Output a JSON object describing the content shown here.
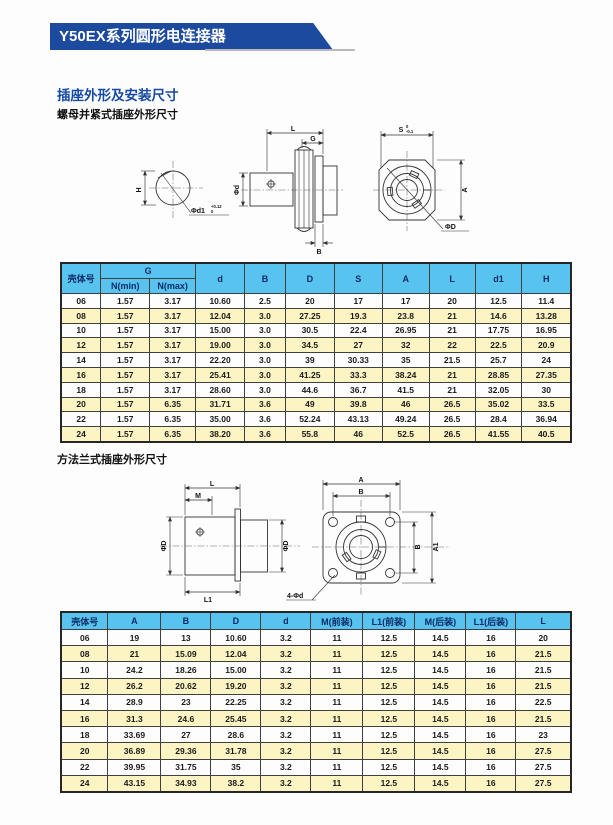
{
  "page": {
    "banner_title": "Y50EX系列圆形电连接器",
    "section_title": "插座外形及安装尺寸",
    "subtitle1": "螺母并紧式插座外形尺寸",
    "subtitle2": "方法兰式插座外形尺寸"
  },
  "colors": {
    "banner_bg": "#1c4a9e",
    "banner_text": "#ffffff",
    "section_title": "#1549a3",
    "table_header_bg": "#58c3ee",
    "table_header_text": "#0b2a66",
    "row_alt_bg": "#fdf4c3",
    "table_border": "#3f3f3f",
    "line_color": "#333333"
  },
  "drawing1": {
    "labels": {
      "h": "H",
      "phi_d1": "Φd1",
      "phi_d1_tol_top": "+0.12",
      "phi_d1_tol_bot": "0",
      "l": "L",
      "g": "G",
      "phi_d": "Φd",
      "b": "B",
      "s": "S",
      "s_tol_top": "0",
      "s_tol_bot": "-0.1",
      "a": "A",
      "phi_big_d": "ΦD"
    }
  },
  "drawing2": {
    "labels": {
      "l": "L",
      "m": "M",
      "phi_d_left": "ΦD",
      "phi_d_right": "ΦD",
      "l1": "L1",
      "a": "A",
      "b_top": "B",
      "b_right": "B",
      "a1": "A1",
      "holes": "4-Φd"
    }
  },
  "table1": {
    "h_shell": "壳体号",
    "h_g": "G",
    "h_nmin": "N(min)",
    "h_nmax": "N(max)",
    "cols": [
      "d",
      "B",
      "D",
      "S",
      "A",
      "L",
      "d1",
      "H"
    ],
    "rows": [
      [
        "06",
        "1.57",
        "3.17",
        "10.60",
        "2.5",
        "20",
        "17",
        "17",
        "20",
        "12.5",
        "11.4"
      ],
      [
        "08",
        "1.57",
        "3.17",
        "12.04",
        "3.0",
        "27.25",
        "19.3",
        "23.8",
        "21",
        "14.6",
        "13.28"
      ],
      [
        "10",
        "1.57",
        "3.17",
        "15.00",
        "3.0",
        "30.5",
        "22.4",
        "26.95",
        "21",
        "17.75",
        "16.95"
      ],
      [
        "12",
        "1.57",
        "3.17",
        "19.00",
        "3.0",
        "34.5",
        "27",
        "32",
        "22",
        "22.5",
        "20.9"
      ],
      [
        "14",
        "1.57",
        "3.17",
        "22.20",
        "3.0",
        "39",
        "30.33",
        "35",
        "21.5",
        "25.7",
        "24"
      ],
      [
        "16",
        "1.57",
        "3.17",
        "25.41",
        "3.0",
        "41.25",
        "33.3",
        "38.24",
        "21",
        "28.85",
        "27.35"
      ],
      [
        "18",
        "1.57",
        "3.17",
        "28.60",
        "3.0",
        "44.6",
        "36.7",
        "41.5",
        "21",
        "32.05",
        "30"
      ],
      [
        "20",
        "1.57",
        "6.35",
        "31.71",
        "3.6",
        "49",
        "39.8",
        "46",
        "26.5",
        "35.02",
        "33.5"
      ],
      [
        "22",
        "1.57",
        "6.35",
        "35.00",
        "3.6",
        "52.24",
        "43.13",
        "49.24",
        "26.5",
        "28.4",
        "36.94"
      ],
      [
        "24",
        "1.57",
        "6.35",
        "38.20",
        "3.6",
        "55.8",
        "46",
        "52.5",
        "26.5",
        "41.55",
        "40.5"
      ]
    ]
  },
  "table2": {
    "headers": [
      "壳体号",
      "A",
      "B",
      "D",
      "d",
      "M(前装)",
      "L1(前装)",
      "M(后装)",
      "L1(后装)",
      "L"
    ],
    "rows": [
      [
        "06",
        "19",
        "13",
        "10.60",
        "3.2",
        "11",
        "12.5",
        "14.5",
        "16",
        "20"
      ],
      [
        "08",
        "21",
        "15.09",
        "12.04",
        "3.2",
        "11",
        "12.5",
        "14.5",
        "16",
        "21.5"
      ],
      [
        "10",
        "24.2",
        "18.26",
        "15.00",
        "3.2",
        "11",
        "12.5",
        "14.5",
        "16",
        "21.5"
      ],
      [
        "12",
        "26.2",
        "20.62",
        "19.20",
        "3.2",
        "11",
        "12.5",
        "14.5",
        "16",
        "21.5"
      ],
      [
        "14",
        "28.9",
        "23",
        "22.25",
        "3.2",
        "11",
        "12.5",
        "14.5",
        "16",
        "22.5"
      ],
      [
        "16",
        "31.3",
        "24.6",
        "25.45",
        "3.2",
        "11",
        "12.5",
        "14.5",
        "16",
        "21.5"
      ],
      [
        "18",
        "33.69",
        "27",
        "28.6",
        "3.2",
        "11",
        "12.5",
        "14.5",
        "16",
        "23"
      ],
      [
        "20",
        "36.89",
        "29.36",
        "31.78",
        "3.2",
        "11",
        "12.5",
        "14.5",
        "16",
        "27.5"
      ],
      [
        "22",
        "39.95",
        "31.75",
        "35",
        "3.2",
        "11",
        "12.5",
        "14.5",
        "16",
        "27.5"
      ],
      [
        "24",
        "43.15",
        "34.93",
        "38.2",
        "3.2",
        "11",
        "12.5",
        "14.5",
        "16",
        "27.5"
      ]
    ]
  }
}
